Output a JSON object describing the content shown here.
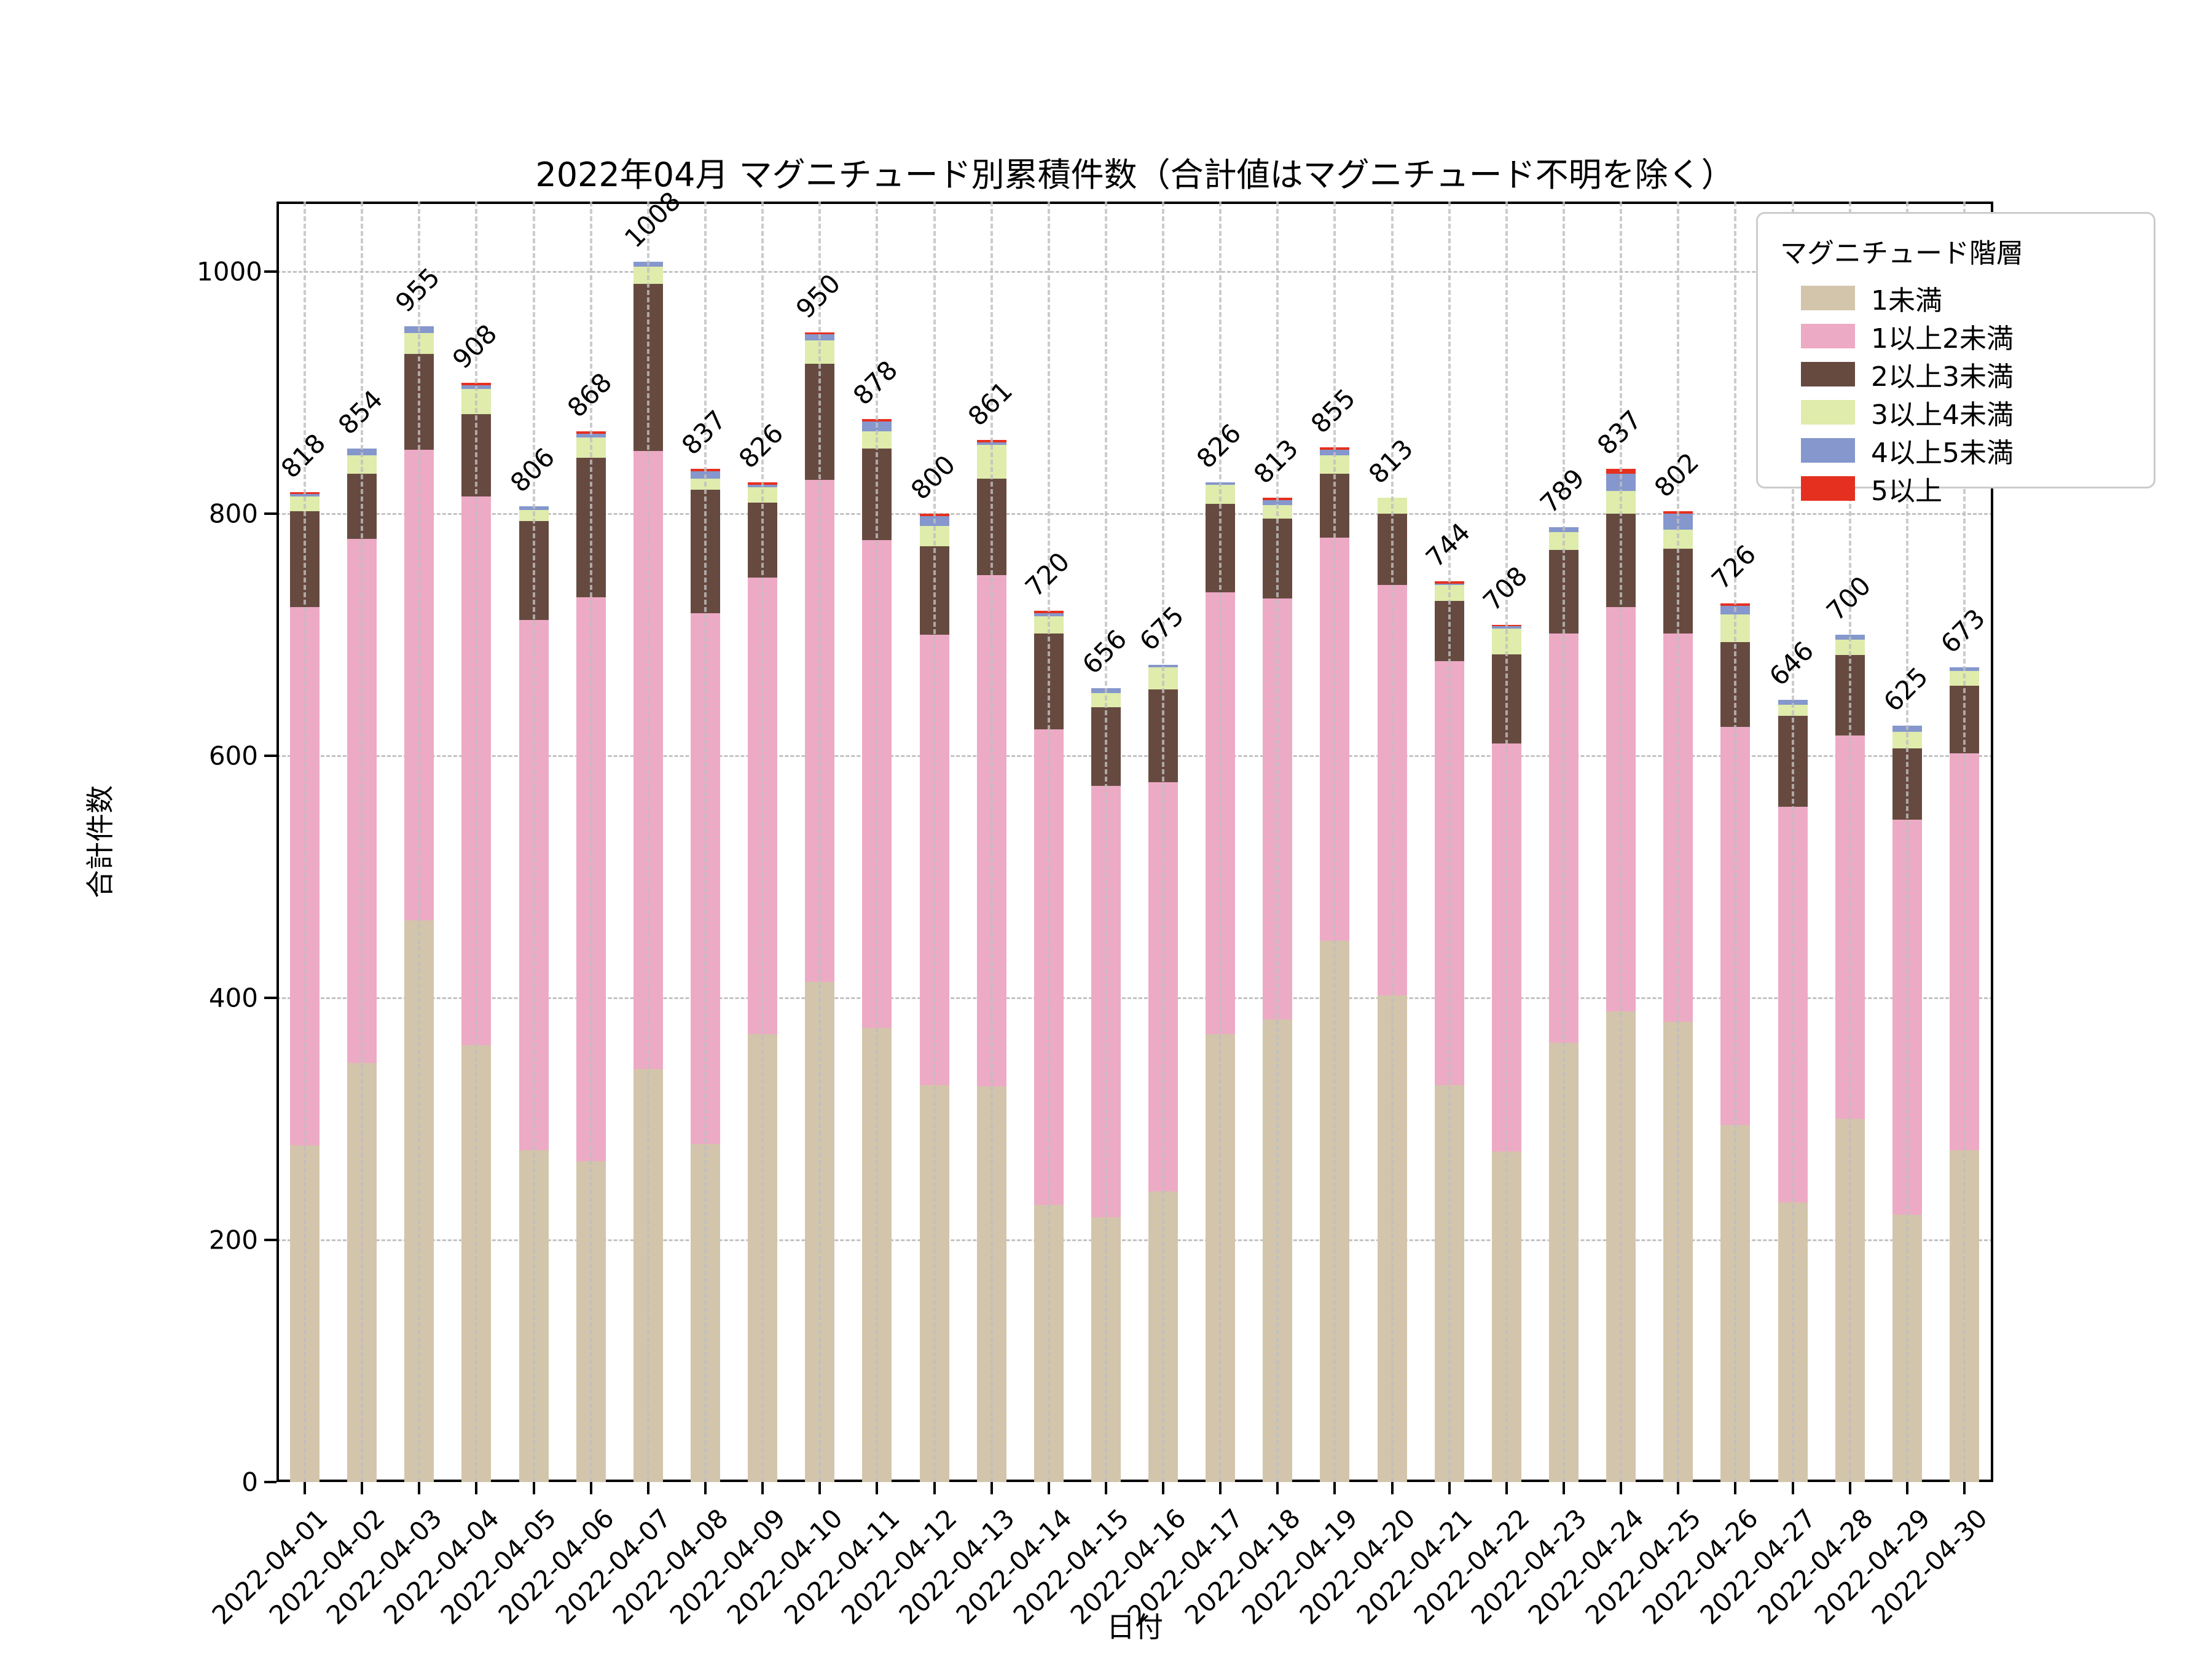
{
  "title": "2022年04月 マグニチュード別累積件数（合計値はマグニチュード不明を除く）",
  "x_axis_label": "日付",
  "y_axis_label": "合計件数",
  "legend": {
    "title": "マグニチュード階層",
    "entries": [
      {
        "label": "1未満",
        "color": "#d3c5ab"
      },
      {
        "label": "1以上2未満",
        "color": "#edaac5"
      },
      {
        "label": "2以上3未満",
        "color": "#664a40"
      },
      {
        "label": "3以上4未満",
        "color": "#dfecab"
      },
      {
        "label": "4以上5未満",
        "color": "#8597cc"
      },
      {
        "label": "5以上",
        "color": "#e5301f"
      }
    ]
  },
  "chart_data": {
    "type": "bar",
    "stacked": true,
    "grid": true,
    "legend_position": "upper right",
    "title": "2022年04月 マグニチュード別累積件数（合計値はマグニチュード不明を除く）",
    "xlabel": "日付",
    "ylabel": "合計件数",
    "ylim": [
      0,
      1058
    ],
    "y_ticks": [
      0,
      200,
      400,
      600,
      800,
      1000
    ],
    "categories": [
      "2022-04-01",
      "2022-04-02",
      "2022-04-03",
      "2022-04-04",
      "2022-04-05",
      "2022-04-06",
      "2022-04-07",
      "2022-04-08",
      "2022-04-09",
      "2022-04-10",
      "2022-04-11",
      "2022-04-12",
      "2022-04-13",
      "2022-04-14",
      "2022-04-15",
      "2022-04-16",
      "2022-04-17",
      "2022-04-18",
      "2022-04-19",
      "2022-04-20",
      "2022-04-21",
      "2022-04-22",
      "2022-04-23",
      "2022-04-24",
      "2022-04-25",
      "2022-04-26",
      "2022-04-27",
      "2022-04-28",
      "2022-04-29",
      "2022-04-30"
    ],
    "series": [
      {
        "name": "1未満",
        "color": "#d3c5ab",
        "values": [
          278,
          346,
          464,
          361,
          274,
          265,
          341,
          279,
          370,
          413,
          375,
          328,
          327,
          229,
          219,
          240,
          370,
          382,
          447,
          402,
          328,
          273,
          363,
          389,
          380,
          295,
          231,
          300,
          221,
          274
        ]
      },
      {
        "name": "1以上2未満",
        "color": "#edaac5",
        "values": [
          445,
          433,
          389,
          453,
          438,
          466,
          511,
          439,
          377,
          415,
          403,
          372,
          422,
          393,
          356,
          338,
          365,
          348,
          333,
          339,
          350,
          337,
          338,
          334,
          321,
          329,
          327,
          317,
          326,
          328
        ]
      },
      {
        "name": "2以上3未満",
        "color": "#664a40",
        "values": [
          79,
          54,
          79,
          68,
          82,
          115,
          138,
          102,
          62,
          96,
          76,
          73,
          80,
          79,
          65,
          77,
          73,
          66,
          53,
          59,
          50,
          74,
          69,
          77,
          70,
          70,
          75,
          66,
          59,
          56
        ]
      },
      {
        "name": "3以上4未満",
        "color": "#dfecab",
        "values": [
          12,
          15,
          17,
          21,
          9,
          17,
          14,
          9,
          13,
          19,
          14,
          17,
          28,
          14,
          12,
          18,
          16,
          11,
          15,
          13,
          13,
          21,
          15,
          19,
          16,
          23,
          9,
          13,
          14,
          12
        ]
      },
      {
        "name": "4以上5未満",
        "color": "#8597cc",
        "values": [
          2,
          6,
          6,
          3,
          3,
          3,
          4,
          6,
          2,
          5,
          8,
          8,
          2,
          3,
          4,
          2,
          2,
          4,
          5,
          0,
          1,
          2,
          4,
          14,
          13,
          7,
          4,
          4,
          5,
          3
        ]
      },
      {
        "name": "5以上",
        "color": "#e5301f",
        "values": [
          2,
          0,
          0,
          2,
          0,
          2,
          0,
          2,
          2,
          2,
          2,
          2,
          2,
          2,
          0,
          0,
          0,
          2,
          2,
          0,
          2,
          1,
          0,
          4,
          2,
          2,
          0,
          0,
          0,
          0
        ]
      }
    ],
    "bar_total_labels": [
      818,
      854,
      955,
      908,
      806,
      868,
      1008,
      837,
      826,
      950,
      878,
      800,
      861,
      720,
      656,
      675,
      826,
      813,
      855,
      813,
      744,
      708,
      789,
      837,
      802,
      726,
      646,
      700,
      625,
      673
    ]
  }
}
